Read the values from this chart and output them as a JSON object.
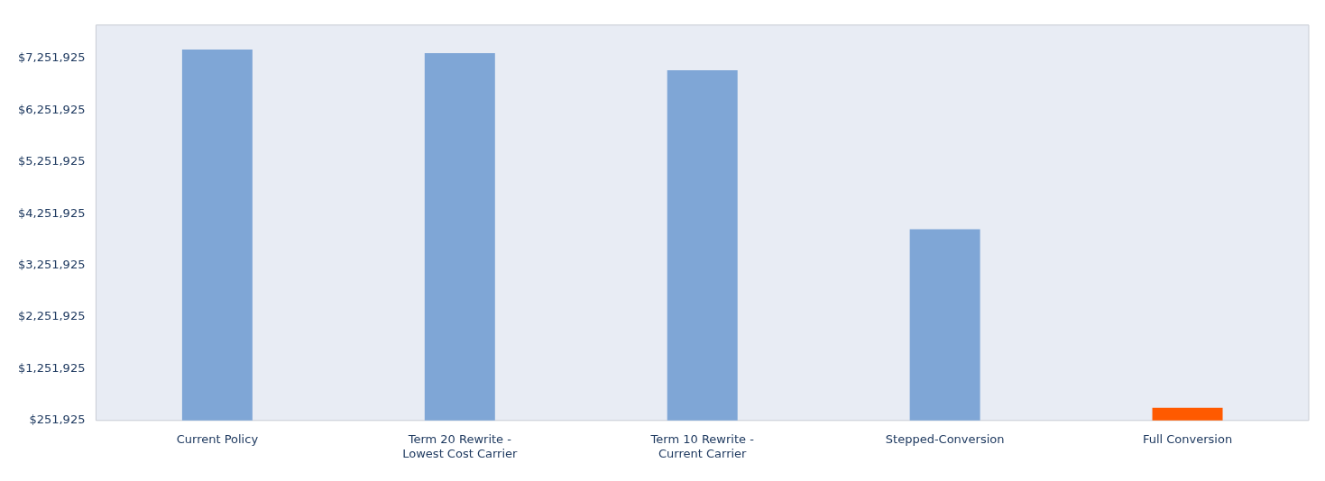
{
  "chart_data": {
    "type": "bar",
    "categories": [
      "Current Policy",
      "Term 20 Rewrite - Lowest Cost Carrier",
      "Term 10 Rewrite - Current Carrier",
      "Stepped-Conversion",
      "Full Conversion"
    ],
    "values": [
      7425000,
      7356000,
      7026000,
      3952000,
      495000
    ],
    "colors": [
      "#7fa6d6",
      "#7fa6d6",
      "#7fa6d6",
      "#7fa6d6",
      "#ff5a00"
    ],
    "ylim": [
      251925,
      7900000
    ],
    "yticks": [
      {
        "value": 251925,
        "label": "$251,925"
      },
      {
        "value": 1251925,
        "label": "$1,251,925"
      },
      {
        "value": 2251925,
        "label": "$2,251,925"
      },
      {
        "value": 3251925,
        "label": "$3,251,925"
      },
      {
        "value": 4251925,
        "label": "$4,251,925"
      },
      {
        "value": 5251925,
        "label": "$5,251,925"
      },
      {
        "value": 6251925,
        "label": "$6,251,925"
      },
      {
        "value": 7251925,
        "label": "$7,251,925"
      }
    ],
    "grid": false,
    "legend": false
  }
}
